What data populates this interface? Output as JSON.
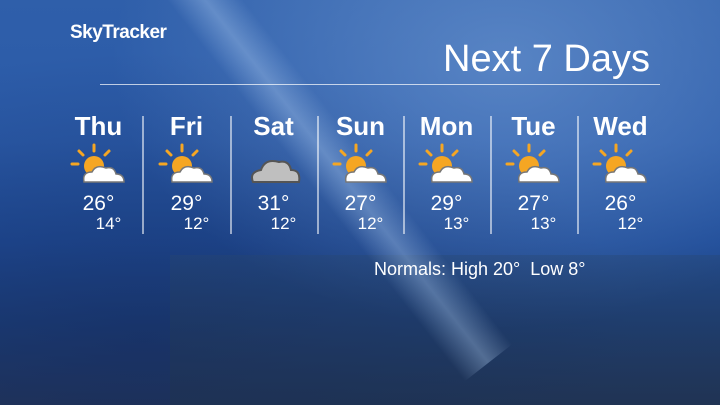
{
  "brand": "SkyTracker",
  "title": "Next 7 Days",
  "days": [
    {
      "day": "Thu",
      "icon": "sun-cloud-icon",
      "high": "26°",
      "low": "14°"
    },
    {
      "day": "Fri",
      "icon": "sun-cloud-icon",
      "high": "29°",
      "low": "12°"
    },
    {
      "day": "Sat",
      "icon": "cloud-icon",
      "high": "31°",
      "low": "12°"
    },
    {
      "day": "Sun",
      "icon": "sun-cloud-icon",
      "high": "27°",
      "low": "12°"
    },
    {
      "day": "Mon",
      "icon": "sun-cloud-icon",
      "high": "29°",
      "low": "13°"
    },
    {
      "day": "Tue",
      "icon": "sun-cloud-icon",
      "high": "27°",
      "low": "13°"
    },
    {
      "day": "Wed",
      "icon": "sun-cloud-icon",
      "high": "26°",
      "low": "12°"
    }
  ],
  "normals": "Normals: High 20°  Low 8°",
  "colors": {
    "sun": "#f5a623",
    "cloud": "#ffffff",
    "grey_cloud": "#bfbfbf",
    "background": "#2a5aa8"
  }
}
